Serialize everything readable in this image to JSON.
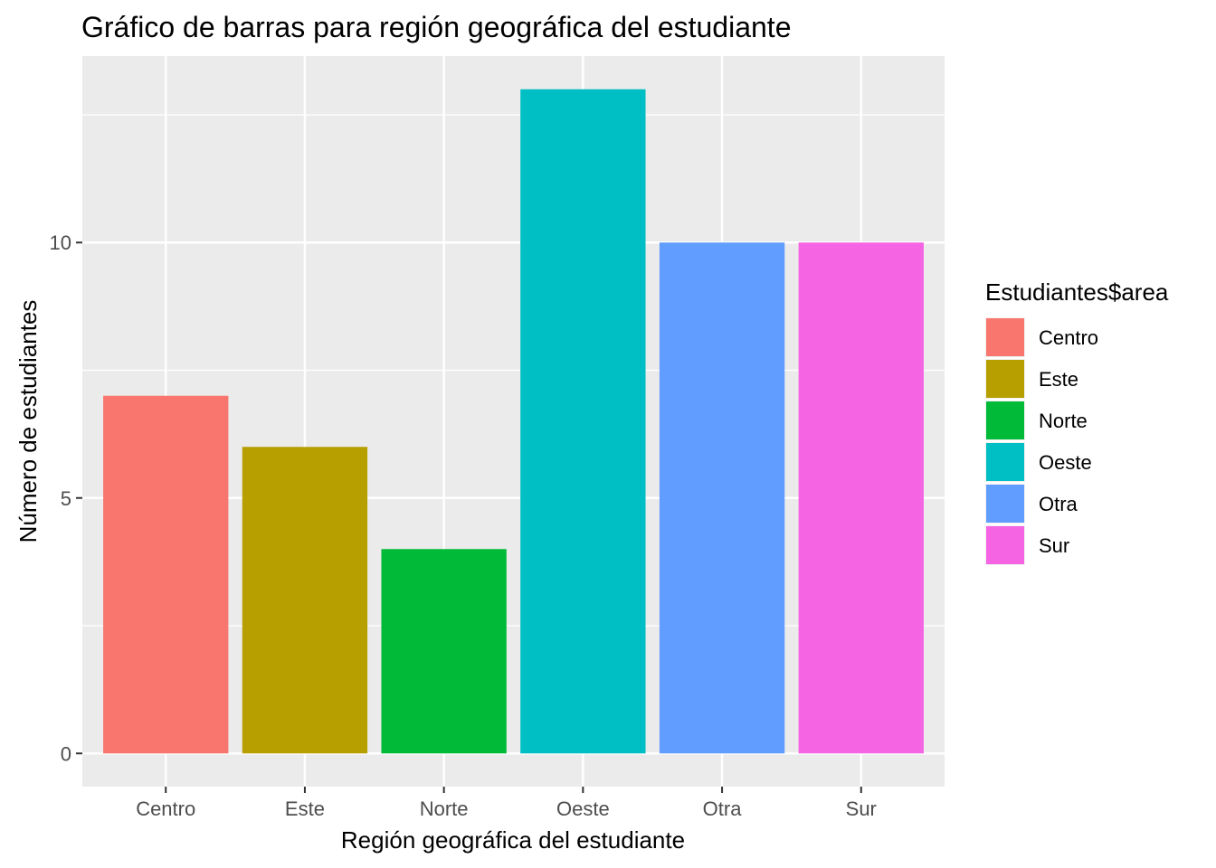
{
  "chart_data": {
    "type": "bar",
    "title": "Gráfico de barras para región geográfica del estudiante",
    "xlabel": "Región geográfica del estudiante",
    "ylabel": "Número de estudiantes",
    "categories": [
      "Centro",
      "Este",
      "Norte",
      "Oeste",
      "Otra",
      "Sur"
    ],
    "values": [
      7,
      6,
      4,
      13,
      10,
      10
    ],
    "colors": [
      "#F8766D",
      "#B79F00",
      "#00BA38",
      "#00BFC4",
      "#619CFF",
      "#F564E3"
    ],
    "ylim": [
      -0.65,
      13.65
    ],
    "yticks": [
      0,
      5,
      10
    ],
    "ytick_labels": [
      "0",
      "5",
      "10"
    ],
    "grid": true,
    "panel_background": "#EBEBEB",
    "legend": {
      "title": "Estudiantes$area",
      "position": "right",
      "items": [
        "Centro",
        "Este",
        "Norte",
        "Oeste",
        "Otra",
        "Sur"
      ]
    }
  }
}
